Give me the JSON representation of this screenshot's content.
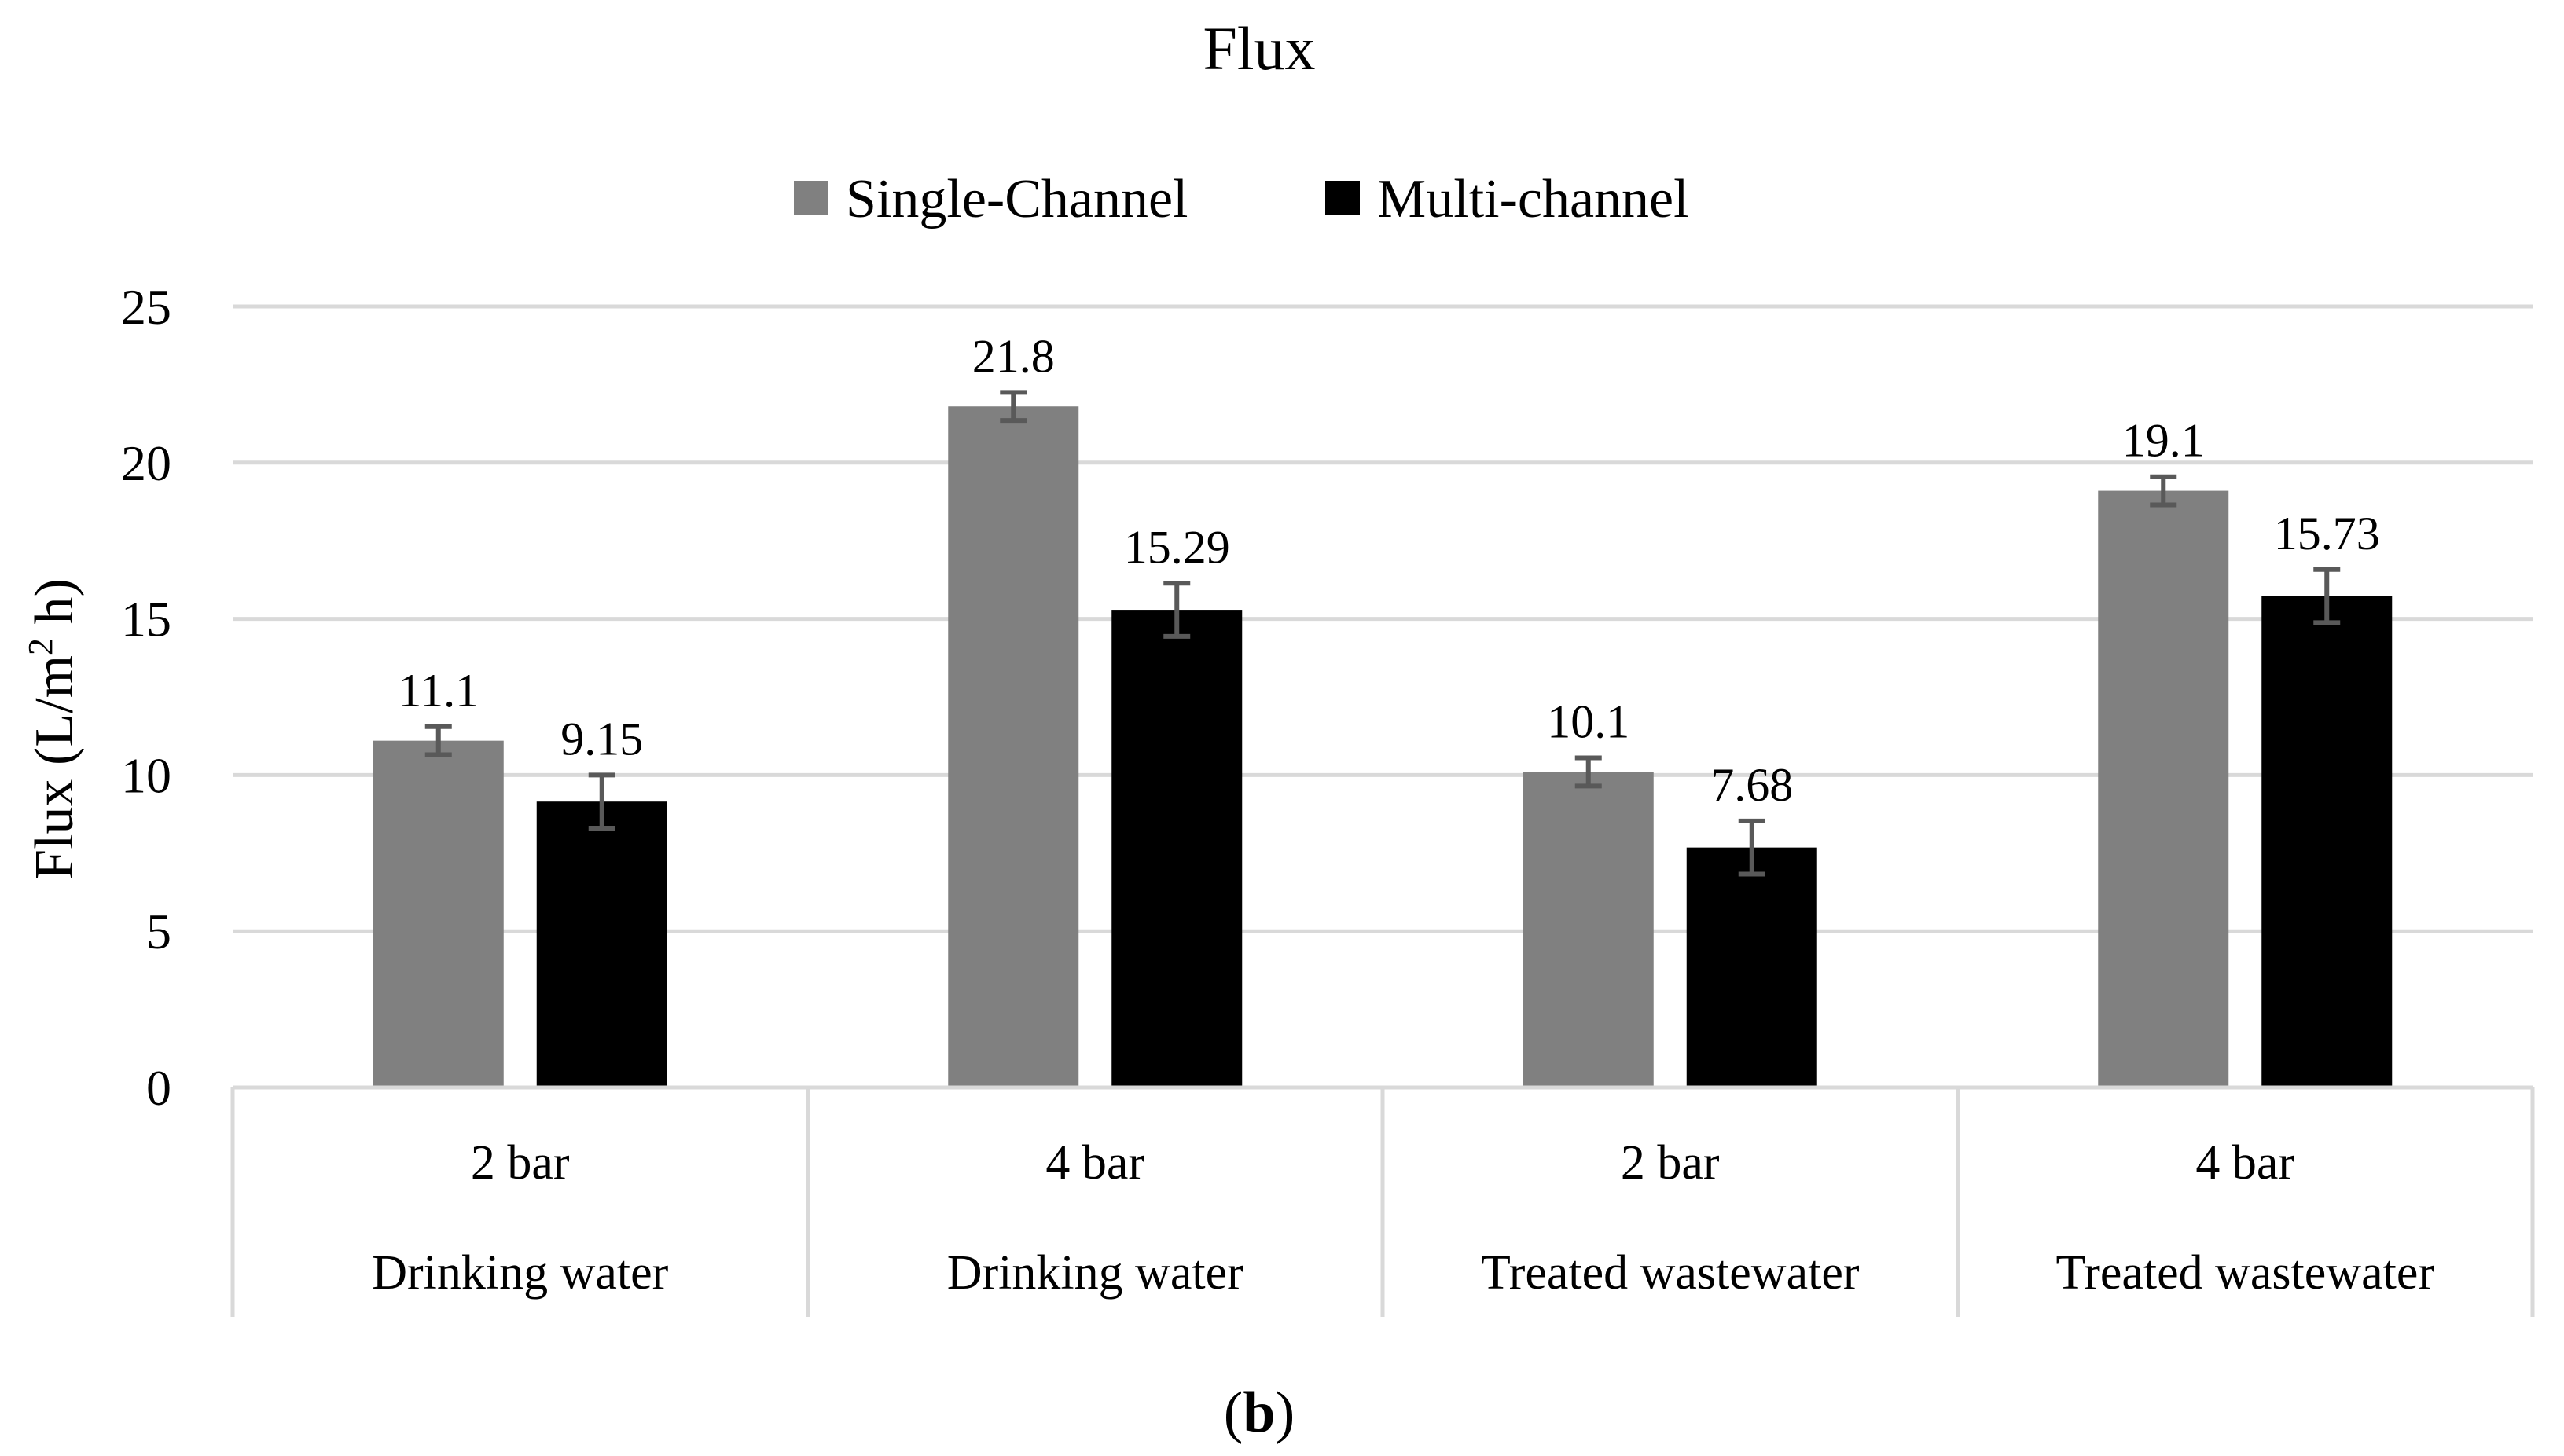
{
  "chart_data": {
    "type": "bar",
    "title": "Flux",
    "ylabel": "Flux (L/m² h)",
    "ylabel_parts": {
      "before": "Flux (L/m",
      "superscript": "2",
      "after": " h)"
    },
    "xlabel": "",
    "ylim": [
      0,
      25
    ],
    "yticks": [
      0,
      5,
      10,
      15,
      20,
      25
    ],
    "grid": true,
    "legend_position": "top-center",
    "categories": [
      {
        "pressure": "2 bar",
        "group": "Drinking water"
      },
      {
        "pressure": "4 bar",
        "group": "Drinking water"
      },
      {
        "pressure": "2 bar",
        "group": "Treated wastewater"
      },
      {
        "pressure": "4 bar",
        "group": "Treated wastewater"
      }
    ],
    "series": [
      {
        "name": "Single-Channel",
        "color": "#808080",
        "values": [
          11.1,
          21.8,
          10.1,
          19.1
        ],
        "value_labels": [
          "11.1",
          "21.8",
          "10.1",
          "19.1"
        ],
        "errors": [
          0.45,
          0.45,
          0.45,
          0.45
        ]
      },
      {
        "name": "Multi-channel",
        "color": "#000000",
        "values": [
          9.15,
          15.29,
          7.68,
          15.73
        ],
        "value_labels": [
          "9.15",
          "15.29",
          "7.68",
          "15.73"
        ],
        "errors": [
          0.85,
          0.85,
          0.85,
          0.85
        ]
      }
    ],
    "error_bar_color": "#595959",
    "gridline_color": "#d9d9d9"
  },
  "panel": {
    "open": "(",
    "letter": "b",
    "close": ")"
  }
}
